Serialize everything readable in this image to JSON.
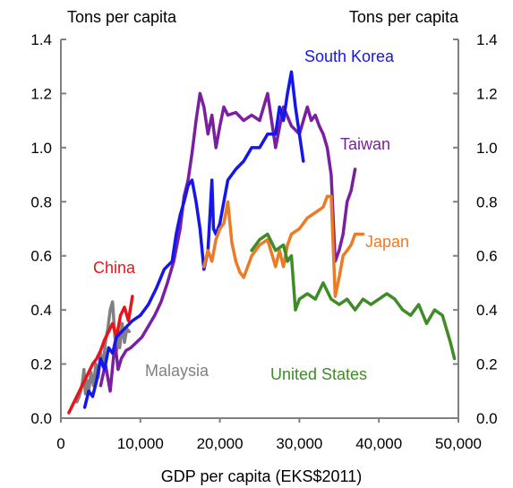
{
  "chart_data": {
    "type": "line",
    "title": "",
    "xlabel": "GDP  per capita  (EKS$2011)",
    "ylabel_left": "Tons per capita",
    "ylabel_right": "Tons per capita",
    "xlim": [
      0,
      50000
    ],
    "ylim": [
      0,
      1.4
    ],
    "x_ticks": [
      0,
      10000,
      20000,
      30000,
      40000,
      50000
    ],
    "x_tick_labels": [
      "0",
      "10,000",
      "20,000",
      "30,000",
      "40,000",
      "50,000"
    ],
    "y_ticks": [
      0,
      0.2,
      0.4,
      0.6,
      0.8,
      1.0,
      1.2,
      1.4
    ],
    "y_tick_labels": [
      "0.0",
      "0.2",
      "0.4",
      "0.6",
      "0.8",
      "1.0",
      "1.2",
      "1.4"
    ],
    "grid": false,
    "series": [
      {
        "name": "Malaysia",
        "color": "#808080",
        "x": [
          2000,
          2300,
          2500,
          2700,
          2900,
          3000,
          3100,
          3300,
          3500,
          3800,
          4100,
          4400,
          4700,
          5000,
          5300,
          5600,
          5900,
          6200,
          6500,
          6800,
          7000,
          7200,
          7400,
          7700,
          8000,
          8300,
          8600
        ],
        "y": [
          0.06,
          0.08,
          0.1,
          0.13,
          0.18,
          0.12,
          0.09,
          0.14,
          0.1,
          0.17,
          0.12,
          0.2,
          0.15,
          0.24,
          0.19,
          0.28,
          0.33,
          0.4,
          0.43,
          0.3,
          0.25,
          0.33,
          0.26,
          0.35,
          0.28,
          0.33,
          0.32
        ]
      },
      {
        "name": "China",
        "color": "#e8141c",
        "x": [
          1000,
          1500,
          2000,
          2500,
          3000,
          3500,
          4000,
          4500,
          5000,
          5500,
          6000,
          6500,
          7000,
          7500,
          8000,
          8500,
          9000
        ],
        "y": [
          0.02,
          0.05,
          0.08,
          0.11,
          0.14,
          0.17,
          0.2,
          0.22,
          0.25,
          0.29,
          0.32,
          0.35,
          0.3,
          0.38,
          0.41,
          0.36,
          0.45
        ]
      },
      {
        "name": "Taiwan",
        "color": "#7b1fa2",
        "x": [
          5000,
          5600,
          6200,
          6800,
          7200,
          7600,
          8200,
          8800,
          9500,
          10200,
          11000,
          11800,
          12600,
          13400,
          14200,
          15000,
          15500,
          16000,
          16500,
          17000,
          17500,
          18000,
          18500,
          19000,
          19500,
          20000,
          20500,
          21000,
          22000,
          23000,
          24000,
          25000,
          26000,
          27000,
          28000,
          29000,
          30000,
          31000,
          31500,
          32000,
          32500,
          33000,
          33500,
          34000,
          34500,
          35000,
          35500,
          36000,
          36500,
          37000
        ],
        "y": [
          0.12,
          0.2,
          0.1,
          0.28,
          0.18,
          0.22,
          0.25,
          0.26,
          0.28,
          0.3,
          0.34,
          0.38,
          0.43,
          0.5,
          0.58,
          0.7,
          0.82,
          0.88,
          0.98,
          1.1,
          1.2,
          1.15,
          1.05,
          1.12,
          1.0,
          1.08,
          1.15,
          1.12,
          1.13,
          1.1,
          1.12,
          1.1,
          1.2,
          1.0,
          1.15,
          1.08,
          1.05,
          1.15,
          1.1,
          1.12,
          1.08,
          1.05,
          1.0,
          0.9,
          0.58,
          0.62,
          0.68,
          0.8,
          0.84,
          0.92
        ]
      },
      {
        "name": "South Korea",
        "color": "#1515ee",
        "x": [
          3000,
          3500,
          4000,
          4500,
          5000,
          5500,
          6000,
          6500,
          7000,
          8000,
          9000,
          10000,
          11000,
          12000,
          13000,
          14000,
          14500,
          15000,
          15500,
          16000,
          16500,
          17000,
          17500,
          18000,
          18500,
          19000,
          19200,
          19500,
          20000,
          20500,
          21000,
          22000,
          23000,
          24000,
          25000,
          26000,
          27000,
          27500,
          28000,
          28500,
          29000,
          29500,
          30000,
          30500
        ],
        "y": [
          0.04,
          0.1,
          0.08,
          0.14,
          0.22,
          0.18,
          0.26,
          0.24,
          0.3,
          0.33,
          0.36,
          0.38,
          0.42,
          0.48,
          0.55,
          0.58,
          0.68,
          0.75,
          0.8,
          0.86,
          0.88,
          0.8,
          0.7,
          0.55,
          0.62,
          0.88,
          0.7,
          0.68,
          0.72,
          0.8,
          0.88,
          0.92,
          0.95,
          1.0,
          1.0,
          1.05,
          1.05,
          1.15,
          1.1,
          1.2,
          1.28,
          1.15,
          1.05,
          0.95
        ]
      },
      {
        "name": "Japan",
        "color": "#ed7b26",
        "x": [
          18000,
          18500,
          19000,
          19500,
          20000,
          20500,
          21000,
          21500,
          22000,
          22500,
          23000,
          23500,
          24000,
          25000,
          26000,
          27000,
          27500,
          28000,
          28500,
          29000,
          30000,
          31000,
          32000,
          33000,
          33500,
          34000,
          34500,
          35000,
          35500,
          36000,
          36500,
          37000,
          38000
        ],
        "y": [
          0.56,
          0.62,
          0.58,
          0.66,
          0.7,
          0.72,
          0.8,
          0.65,
          0.58,
          0.54,
          0.52,
          0.56,
          0.6,
          0.64,
          0.66,
          0.56,
          0.62,
          0.56,
          0.64,
          0.68,
          0.7,
          0.74,
          0.76,
          0.78,
          0.82,
          0.82,
          0.45,
          0.52,
          0.6,
          0.62,
          0.64,
          0.68,
          0.68
        ]
      },
      {
        "name": "United States",
        "color": "#3e8b27",
        "x": [
          24000,
          25000,
          26000,
          27000,
          28000,
          28500,
          29000,
          29500,
          30000,
          31000,
          32000,
          33000,
          34000,
          35000,
          36000,
          37000,
          38000,
          39000,
          40000,
          41000,
          42000,
          43000,
          44000,
          45000,
          46000,
          47000,
          48000,
          49000,
          49500
        ],
        "y": [
          0.62,
          0.66,
          0.68,
          0.62,
          0.64,
          0.58,
          0.6,
          0.4,
          0.44,
          0.46,
          0.44,
          0.5,
          0.44,
          0.42,
          0.44,
          0.4,
          0.44,
          0.42,
          0.44,
          0.46,
          0.44,
          0.4,
          0.38,
          0.42,
          0.35,
          0.4,
          0.38,
          0.28,
          0.22
        ]
      }
    ],
    "series_labels": [
      "South Korea",
      "Taiwan",
      "Japan",
      "China",
      "Malaysia",
      "United States"
    ]
  }
}
